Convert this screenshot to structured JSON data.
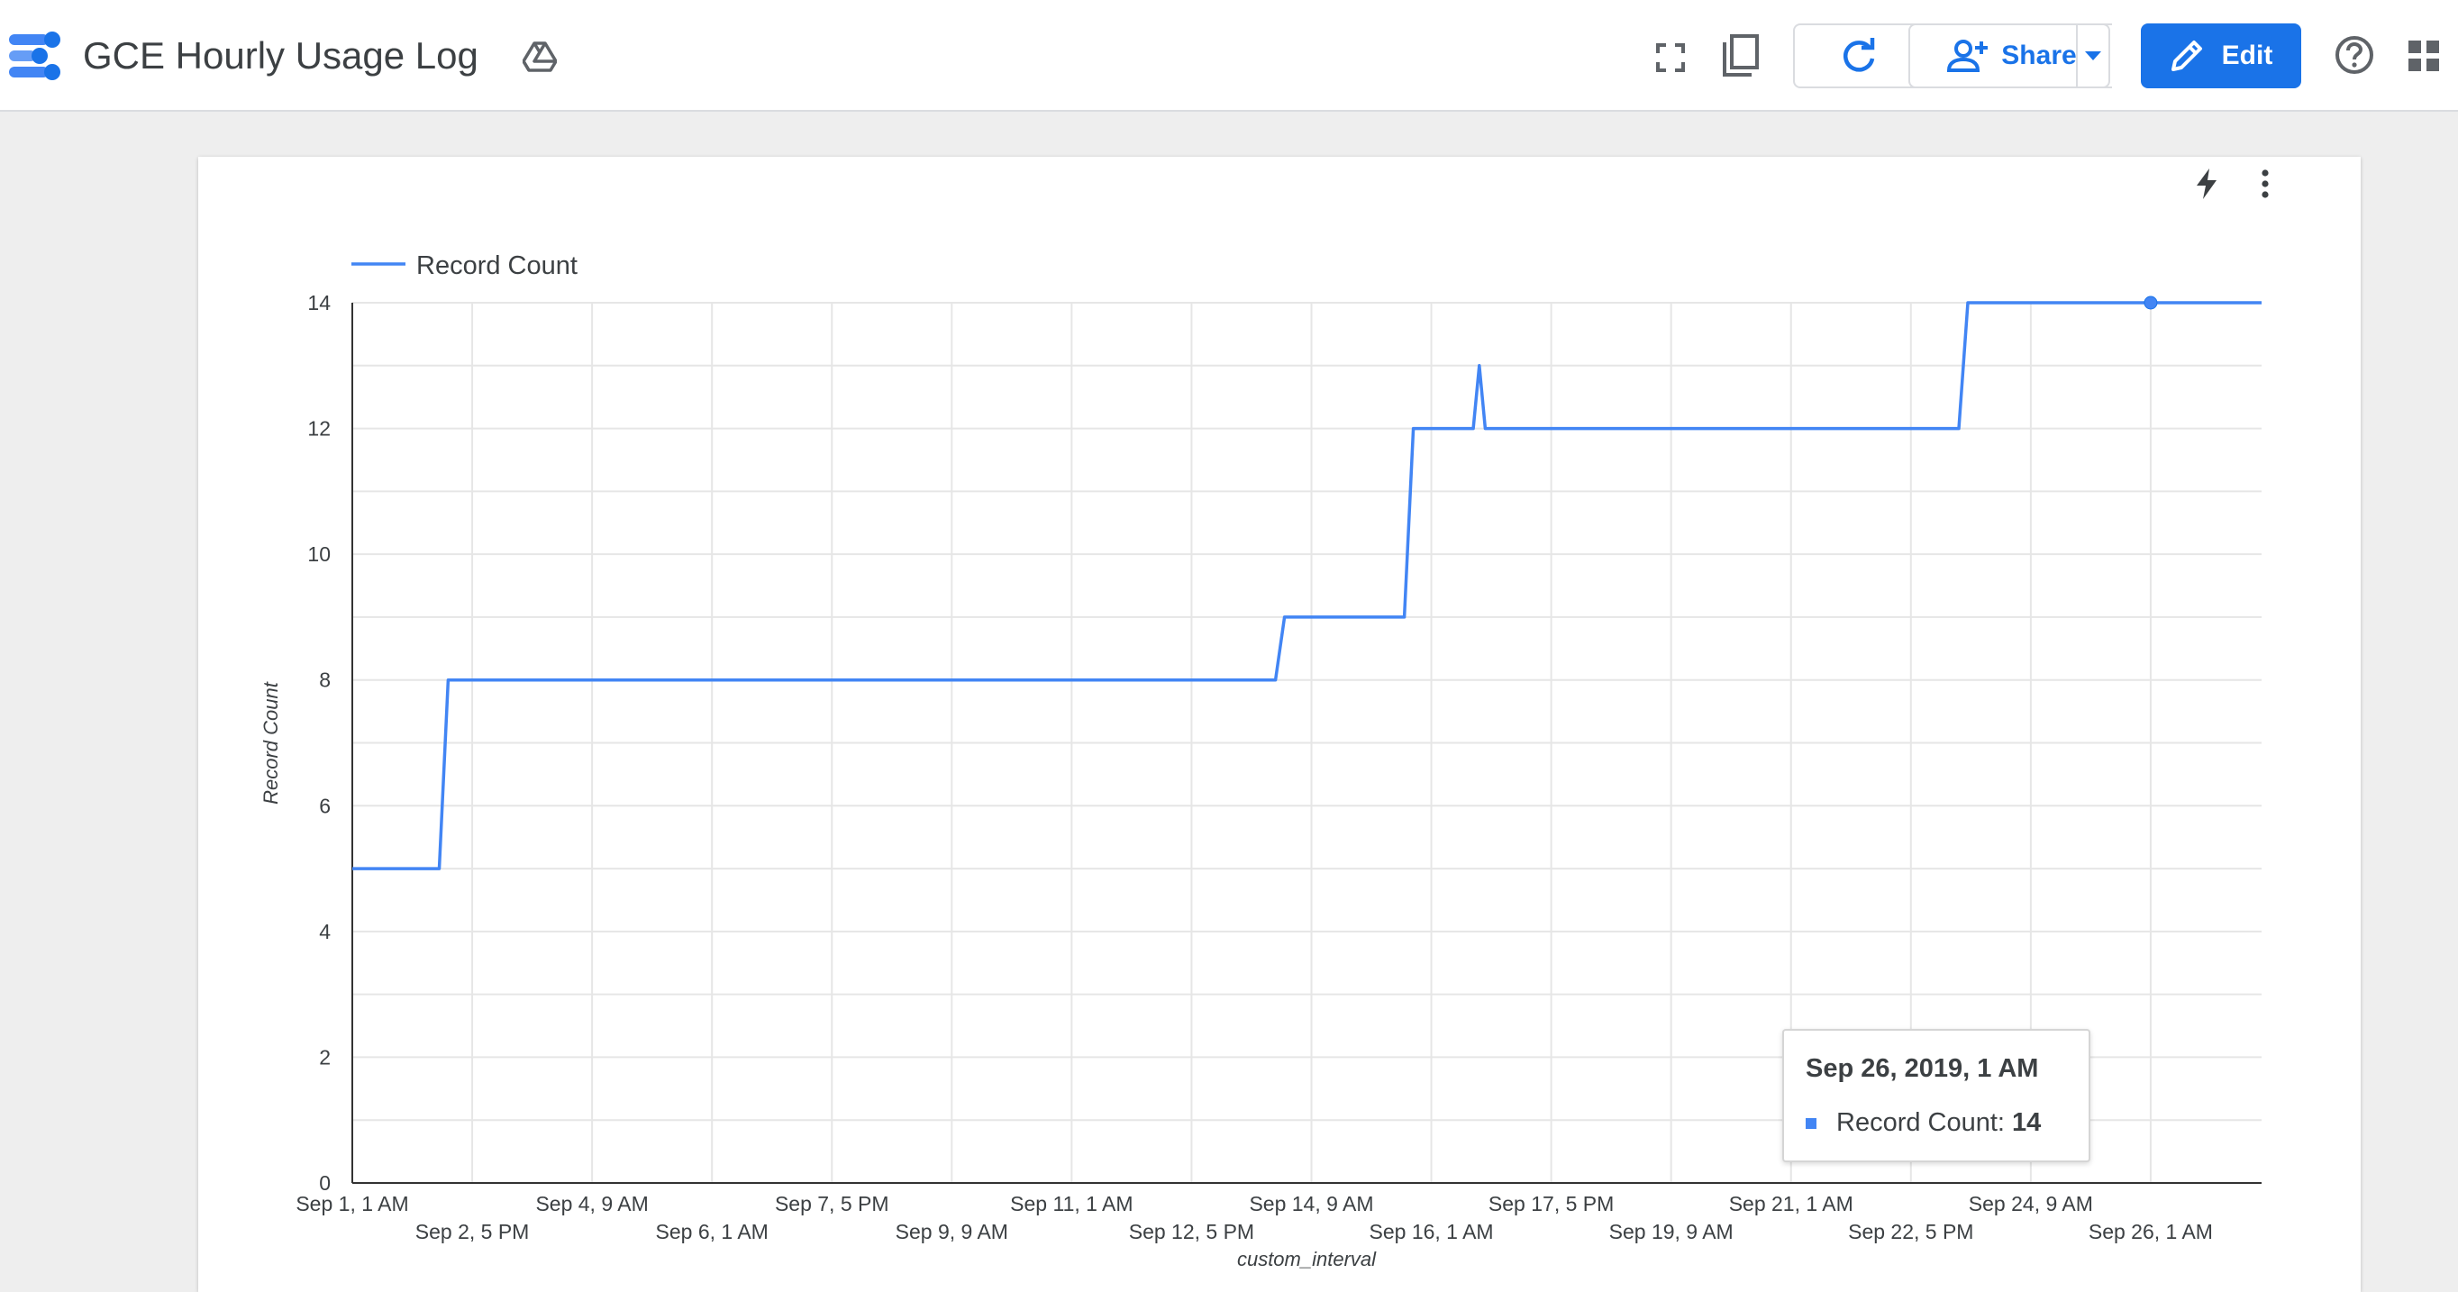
{
  "header": {
    "title": "GCE Hourly Usage Log",
    "share_label": "Share",
    "edit_label": "Edit"
  },
  "icons": {
    "logo": "data-studio-logo-icon",
    "drive": "google-drive-icon",
    "fullscreen": "fullscreen-icon",
    "copy": "copy-icon",
    "refresh": "refresh-icon",
    "share": "person-add-icon",
    "dropdown": "caret-down-icon",
    "edit": "pencil-icon",
    "help": "help-icon",
    "apps": "apps-grid-icon",
    "bolt": "lightning-icon",
    "menu": "more-vert-icon"
  },
  "colors": {
    "accent": "#1a73e8",
    "series": "#4285f4"
  },
  "chart_data": {
    "type": "line",
    "title": "",
    "xlabel": "custom_interval",
    "ylabel": "Record Count",
    "legend": {
      "position": "top-left",
      "entries": [
        "Record Count"
      ]
    },
    "grid": true,
    "ylim": [
      0,
      14
    ],
    "yticks": [
      0,
      2,
      4,
      6,
      8,
      10,
      12,
      14
    ],
    "x_range": [
      "2019-09-01T01:00",
      "2019-09-27T14:00"
    ],
    "xtick_labels": [
      "Sep 1, 1 AM",
      "Sep 2, 5 PM",
      "Sep 4, 9 AM",
      "Sep 6, 1 AM",
      "Sep 7, 5 PM",
      "Sep 9, 9 AM",
      "Sep 11, 1 AM",
      "Sep 12, 5 PM",
      "Sep 14, 9 AM",
      "Sep 16, 1 AM",
      "Sep 17, 5 PM",
      "Sep 19, 9 AM",
      "Sep 21, 1 AM",
      "Sep 22, 5 PM",
      "Sep 24, 9 AM",
      "Sep 26, 1 AM"
    ],
    "series": [
      {
        "name": "Record Count",
        "x": [
          "2019-09-01T01:00",
          "2019-09-02T06:00",
          "2019-09-02T09:00",
          "2019-09-13T21:00",
          "2019-09-14T00:00",
          "2019-09-15T16:00",
          "2019-09-15T19:00",
          "2019-09-16T15:00",
          "2019-09-16T17:00",
          "2019-09-16T19:00",
          "2019-09-23T09:00",
          "2019-09-23T12:00",
          "2019-09-26T01:00",
          "2019-09-27T14:00"
        ],
        "y": [
          5,
          5,
          8,
          8,
          9,
          9,
          12,
          12,
          13,
          12,
          12,
          14,
          14,
          14
        ]
      }
    ]
  },
  "tooltip": {
    "date": "Sep 26, 2019, 1 AM",
    "label": "Record Count:",
    "value": "14"
  }
}
